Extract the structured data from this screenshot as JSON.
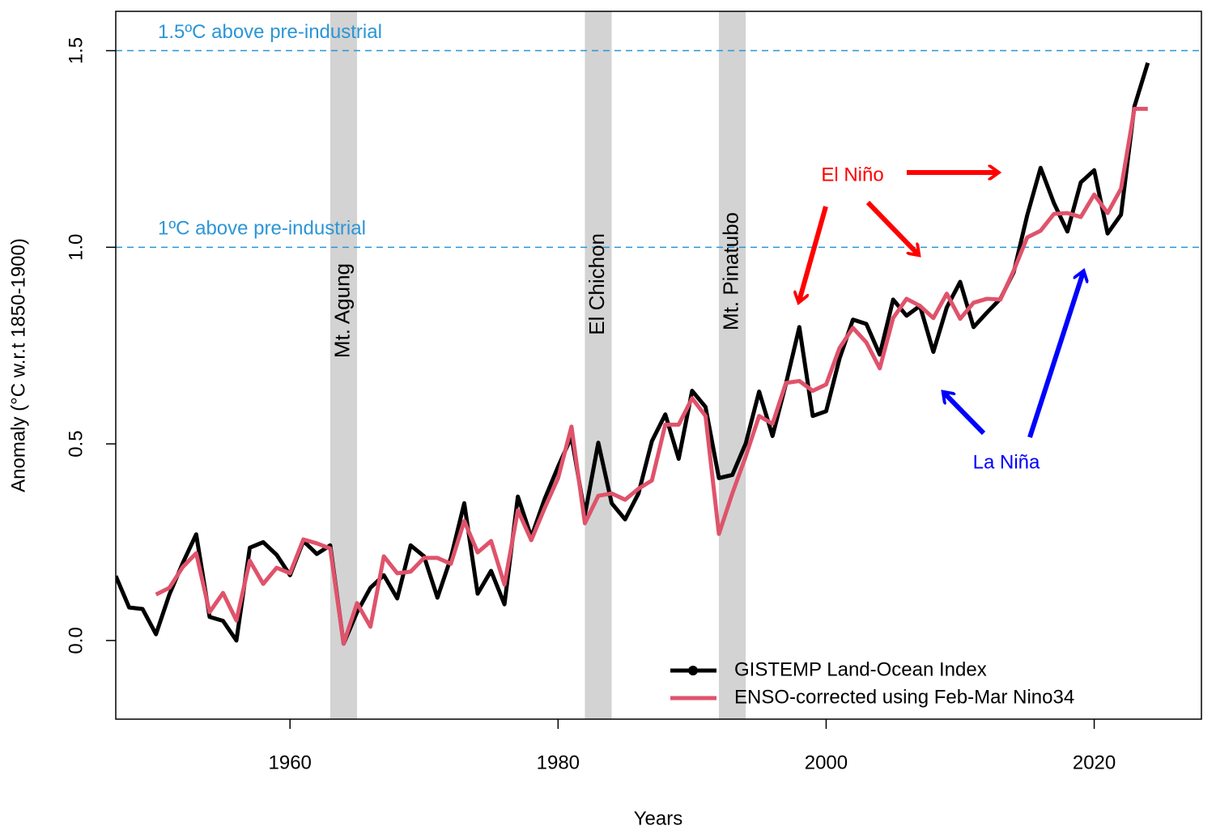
{
  "chart_data": {
    "type": "line",
    "x_label": "Years",
    "y_label": "Anomaly (°C w.r.t 1850-1900)",
    "xlim": [
      1947,
      2028
    ],
    "ylim": [
      -0.2,
      1.6
    ],
    "xticks": [
      1960,
      1980,
      2000,
      2020
    ],
    "yticks": [
      {
        "value": 0,
        "label": "0.0"
      },
      {
        "value": 0.5,
        "label": "0.5"
      },
      {
        "value": 1,
        "label": "1.0"
      },
      {
        "value": 1.5,
        "label": "1.5"
      }
    ],
    "legend": "bottom-right",
    "x": [
      1947,
      1948,
      1949,
      1950,
      1951,
      1952,
      1953,
      1954,
      1955,
      1956,
      1957,
      1958,
      1959,
      1960,
      1961,
      1962,
      1963,
      1964,
      1965,
      1966,
      1967,
      1968,
      1969,
      1970,
      1971,
      1972,
      1973,
      1974,
      1975,
      1976,
      1977,
      1978,
      1979,
      1980,
      1981,
      1982,
      1983,
      1984,
      1985,
      1986,
      1987,
      1988,
      1989,
      1990,
      1991,
      1992,
      1993,
      1994,
      1995,
      1996,
      1997,
      1998,
      1999,
      2000,
      2001,
      2002,
      2003,
      2004,
      2005,
      2006,
      2007,
      2008,
      2009,
      2010,
      2011,
      2012,
      2013,
      2014,
      2015,
      2016,
      2017,
      2018,
      2019,
      2020,
      2021,
      2022,
      2023,
      2024
    ],
    "series": [
      {
        "name": "GISTEMP Land-Ocean Index",
        "color": "#000000",
        "marker": true,
        "values": [
          0.164,
          0.084,
          0.08,
          0.016,
          0.117,
          0.197,
          0.27,
          0.06,
          0.05,
          0.0,
          0.236,
          0.25,
          0.218,
          0.166,
          0.253,
          0.22,
          0.242,
          -0.008,
          0.072,
          0.134,
          0.166,
          0.107,
          0.242,
          0.214,
          0.109,
          0.21,
          0.349,
          0.119,
          0.177,
          0.092,
          0.366,
          0.263,
          0.36,
          0.442,
          0.518,
          0.32,
          0.503,
          0.349,
          0.308,
          0.374,
          0.507,
          0.575,
          0.462,
          0.635,
          0.594,
          0.413,
          0.421,
          0.501,
          0.633,
          0.52,
          0.653,
          0.797,
          0.571,
          0.583,
          0.717,
          0.816,
          0.805,
          0.727,
          0.867,
          0.826,
          0.851,
          0.734,
          0.847,
          0.912,
          0.797,
          0.834,
          0.869,
          0.937,
          1.081,
          1.202,
          1.112,
          1.04,
          1.165,
          1.196,
          1.035,
          1.083,
          1.358,
          1.469
        ]
      },
      {
        "name": "ENSO-corrected using Feb-Mar Nino34",
        "color": "#df536b",
        "marker": false,
        "values": [
          null,
          null,
          null,
          0.117,
          0.134,
          0.187,
          0.222,
          0.072,
          0.121,
          0.051,
          0.203,
          0.144,
          0.185,
          0.171,
          0.257,
          0.247,
          0.234,
          -0.008,
          0.095,
          0.035,
          0.214,
          0.171,
          0.175,
          0.21,
          0.21,
          0.195,
          0.304,
          0.224,
          0.253,
          0.142,
          0.331,
          0.255,
          0.337,
          0.413,
          0.544,
          0.298,
          0.368,
          0.374,
          0.358,
          0.386,
          0.407,
          0.549,
          0.549,
          0.616,
          0.571,
          0.271,
          0.374,
          0.468,
          0.571,
          0.551,
          0.655,
          0.66,
          0.635,
          0.651,
          0.744,
          0.795,
          0.758,
          0.692,
          0.82,
          0.869,
          0.851,
          0.82,
          0.882,
          0.818,
          0.859,
          0.869,
          0.867,
          0.941,
          1.025,
          1.042,
          1.085,
          1.087,
          1.077,
          1.134,
          1.087,
          1.149,
          1.352,
          1.352
        ]
      }
    ],
    "reference_lines": [
      {
        "value": 1.5,
        "label": "1.5ºC above pre-industrial",
        "color": "#2b95d6"
      },
      {
        "value": 1,
        "label": "1ºC above pre-industrial",
        "color": "#2b95d6"
      }
    ],
    "bands": [
      {
        "label": "Mt. Agung",
        "start": 1963,
        "end": 1965,
        "color": "#d3d3d3"
      },
      {
        "label": "El Chichon",
        "start": 1982,
        "end": 1984,
        "color": "#d3d3d3"
      },
      {
        "label": "Mt. Pinatubo",
        "start": 1992,
        "end": 1994,
        "color": "#d3d3d3"
      }
    ],
    "annotations": [
      {
        "text": "El Niño",
        "color": "#ff0000"
      },
      {
        "text": "La Niña",
        "color": "#0000ff"
      }
    ]
  }
}
